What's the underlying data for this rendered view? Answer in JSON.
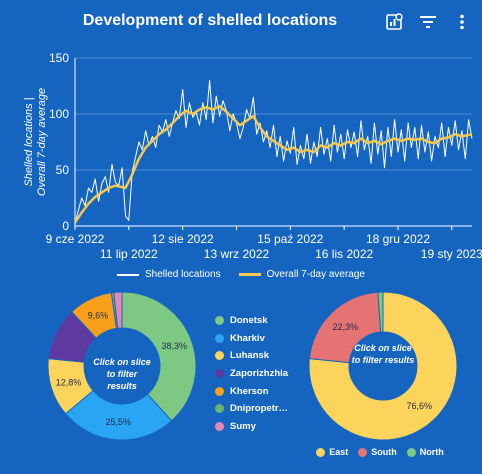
{
  "header": {
    "title": "Development of shelled locations",
    "icons": [
      "chart-settings-icon",
      "filter-icon",
      "more-vert-icon"
    ]
  },
  "colors": {
    "background": "#1565c0",
    "line": "#ffffff",
    "average": "#f6c84c",
    "Donetsk": "#7dc883",
    "Kharkiv": "#2aa4f4",
    "Luhansk": "#fcd45c",
    "Zaporizhzhia": "#5e3aa0",
    "Kherson": "#f9a01b",
    "Dnipropetrovsk": "#6ab46e",
    "Sumy": "#e388b4",
    "East": "#fcd45c",
    "South": "#e57373",
    "North": "#7dc883"
  },
  "chart_data": [
    {
      "type": "line",
      "title": "",
      "ylabel": "Shelled locations | Overall 7-day average",
      "xlabel": "",
      "x_range": [
        "2022-06-09",
        "2023-01-31"
      ],
      "ylim": [
        0,
        150
      ],
      "y_ticks": [
        0,
        50,
        100,
        150
      ],
      "x_ticks": [
        {
          "date": "2022-06-09",
          "label": "9 cze 2022",
          "row": 1
        },
        {
          "date": "2022-07-11",
          "label": "11 lip 2022",
          "row": 2
        },
        {
          "date": "2022-08-12",
          "label": "12 sie 2022",
          "row": 1
        },
        {
          "date": "2022-09-13",
          "label": "13 wrz 2022",
          "row": 2
        },
        {
          "date": "2022-10-15",
          "label": "15 paź 2022",
          "row": 1
        },
        {
          "date": "2022-11-16",
          "label": "16 lis 2022",
          "row": 2
        },
        {
          "date": "2022-12-18",
          "label": "18 gru 2022",
          "row": 1
        },
        {
          "date": "2023-01-19",
          "label": "19 sty 2023",
          "row": 2
        }
      ],
      "grid": true,
      "legend_position": "bottom",
      "series": [
        {
          "name": "Shelled locations",
          "points": [
            [
              "2022-06-09",
              2
            ],
            [
              "2022-06-11",
              14
            ],
            [
              "2022-06-13",
              25
            ],
            [
              "2022-06-15",
              18
            ],
            [
              "2022-06-17",
              34
            ],
            [
              "2022-06-19",
              30
            ],
            [
              "2022-06-21",
              42
            ],
            [
              "2022-06-23",
              22
            ],
            [
              "2022-06-25",
              38
            ],
            [
              "2022-06-27",
              44
            ],
            [
              "2022-06-29",
              30
            ],
            [
              "2022-07-01",
              55
            ],
            [
              "2022-07-03",
              39
            ],
            [
              "2022-07-05",
              36
            ],
            [
              "2022-07-07",
              52
            ],
            [
              "2022-07-09",
              9
            ],
            [
              "2022-07-11",
              5
            ],
            [
              "2022-07-13",
              48
            ],
            [
              "2022-07-15",
              62
            ],
            [
              "2022-07-17",
              75
            ],
            [
              "2022-07-19",
              68
            ],
            [
              "2022-07-21",
              85
            ],
            [
              "2022-07-23",
              72
            ],
            [
              "2022-07-25",
              80
            ],
            [
              "2022-07-27",
              70
            ],
            [
              "2022-07-29",
              90
            ],
            [
              "2022-07-31",
              84
            ],
            [
              "2022-08-02",
              95
            ],
            [
              "2022-08-04",
              80
            ],
            [
              "2022-08-06",
              92
            ],
            [
              "2022-08-08",
              103
            ],
            [
              "2022-08-10",
              96
            ],
            [
              "2022-08-12",
              122
            ],
            [
              "2022-08-14",
              88
            ],
            [
              "2022-08-16",
              110
            ],
            [
              "2022-08-18",
              97
            ],
            [
              "2022-08-20",
              102
            ],
            [
              "2022-08-22",
              90
            ],
            [
              "2022-08-24",
              110
            ],
            [
              "2022-08-26",
              95
            ],
            [
              "2022-08-28",
              130
            ],
            [
              "2022-08-30",
              92
            ],
            [
              "2022-09-01",
              116
            ],
            [
              "2022-09-03",
              98
            ],
            [
              "2022-09-05",
              112
            ],
            [
              "2022-09-07",
              103
            ],
            [
              "2022-09-09",
              85
            ],
            [
              "2022-09-11",
              100
            ],
            [
              "2022-09-13",
              92
            ],
            [
              "2022-09-15",
              78
            ],
            [
              "2022-09-17",
              88
            ],
            [
              "2022-09-19",
              104
            ],
            [
              "2022-09-21",
              96
            ],
            [
              "2022-09-23",
              115
            ],
            [
              "2022-09-25",
              82
            ],
            [
              "2022-09-27",
              92
            ],
            [
              "2022-09-29",
              75
            ],
            [
              "2022-10-01",
              85
            ],
            [
              "2022-10-03",
              70
            ],
            [
              "2022-10-05",
              90
            ],
            [
              "2022-10-07",
              62
            ],
            [
              "2022-10-09",
              80
            ],
            [
              "2022-10-11",
              58
            ],
            [
              "2022-10-13",
              76
            ],
            [
              "2022-10-15",
              65
            ],
            [
              "2022-10-17",
              88
            ],
            [
              "2022-10-19",
              55
            ],
            [
              "2022-10-21",
              72
            ],
            [
              "2022-10-23",
              60
            ],
            [
              "2022-10-25",
              82
            ],
            [
              "2022-10-27",
              56
            ],
            [
              "2022-10-29",
              75
            ],
            [
              "2022-10-31",
              62
            ],
            [
              "2022-11-02",
              88
            ],
            [
              "2022-11-04",
              64
            ],
            [
              "2022-11-06",
              78
            ],
            [
              "2022-11-08",
              58
            ],
            [
              "2022-11-10",
              90
            ],
            [
              "2022-11-12",
              66
            ],
            [
              "2022-11-14",
              82
            ],
            [
              "2022-11-16",
              60
            ],
            [
              "2022-11-18",
              86
            ],
            [
              "2022-11-20",
              70
            ],
            [
              "2022-11-22",
              84
            ],
            [
              "2022-11-24",
              62
            ],
            [
              "2022-11-26",
              94
            ],
            [
              "2022-11-28",
              68
            ],
            [
              "2022-11-30",
              80
            ],
            [
              "2022-12-02",
              56
            ],
            [
              "2022-12-04",
              92
            ],
            [
              "2022-12-06",
              64
            ],
            [
              "2022-12-08",
              85
            ],
            [
              "2022-12-10",
              52
            ],
            [
              "2022-12-12",
              88
            ],
            [
              "2022-12-14",
              62
            ],
            [
              "2022-12-16",
              95
            ],
            [
              "2022-12-18",
              66
            ],
            [
              "2022-12-20",
              86
            ],
            [
              "2022-12-22",
              58
            ],
            [
              "2022-12-24",
              92
            ],
            [
              "2022-12-26",
              70
            ],
            [
              "2022-12-28",
              88
            ],
            [
              "2022-12-30",
              60
            ],
            [
              "2023-01-01",
              90
            ],
            [
              "2023-01-03",
              66
            ],
            [
              "2023-01-05",
              84
            ],
            [
              "2023-01-07",
              58
            ],
            [
              "2023-01-09",
              80
            ],
            [
              "2023-01-11",
              70
            ],
            [
              "2023-01-13",
              92
            ],
            [
              "2023-01-15",
              62
            ],
            [
              "2023-01-17",
              88
            ],
            [
              "2023-01-19",
              72
            ],
            [
              "2023-01-21",
              94
            ],
            [
              "2023-01-23",
              68
            ],
            [
              "2023-01-25",
              85
            ],
            [
              "2023-01-27",
              60
            ],
            [
              "2023-01-29",
              95
            ],
            [
              "2023-01-31",
              78
            ]
          ]
        },
        {
          "name": "Overall 7-day average",
          "points": [
            [
              "2022-06-09",
              3
            ],
            [
              "2022-06-13",
              12
            ],
            [
              "2022-06-17",
              20
            ],
            [
              "2022-06-21",
              26
            ],
            [
              "2022-06-25",
              30
            ],
            [
              "2022-06-29",
              34
            ],
            [
              "2022-07-03",
              36
            ],
            [
              "2022-07-09",
              34
            ],
            [
              "2022-07-13",
              46
            ],
            [
              "2022-07-17",
              60
            ],
            [
              "2022-07-21",
              70
            ],
            [
              "2022-07-25",
              76
            ],
            [
              "2022-07-29",
              82
            ],
            [
              "2022-08-02",
              86
            ],
            [
              "2022-08-06",
              92
            ],
            [
              "2022-08-10",
              98
            ],
            [
              "2022-08-14",
              103
            ],
            [
              "2022-08-18",
              100
            ],
            [
              "2022-08-22",
              104
            ],
            [
              "2022-08-26",
              106
            ],
            [
              "2022-08-30",
              104
            ],
            [
              "2022-09-03",
              107
            ],
            [
              "2022-09-07",
              102
            ],
            [
              "2022-09-11",
              96
            ],
            [
              "2022-09-15",
              90
            ],
            [
              "2022-09-19",
              94
            ],
            [
              "2022-09-23",
              98
            ],
            [
              "2022-09-27",
              88
            ],
            [
              "2022-10-01",
              80
            ],
            [
              "2022-10-05",
              76
            ],
            [
              "2022-10-09",
              72
            ],
            [
              "2022-10-13",
              68
            ],
            [
              "2022-10-17",
              70
            ],
            [
              "2022-10-21",
              66
            ],
            [
              "2022-10-25",
              68
            ],
            [
              "2022-10-29",
              66
            ],
            [
              "2022-11-02",
              72
            ],
            [
              "2022-11-06",
              70
            ],
            [
              "2022-11-10",
              74
            ],
            [
              "2022-11-14",
              72
            ],
            [
              "2022-11-18",
              75
            ],
            [
              "2022-11-22",
              74
            ],
            [
              "2022-11-26",
              78
            ],
            [
              "2022-11-30",
              74
            ],
            [
              "2022-12-04",
              76
            ],
            [
              "2022-12-08",
              73
            ],
            [
              "2022-12-12",
              76
            ],
            [
              "2022-12-16",
              78
            ],
            [
              "2022-12-20",
              76
            ],
            [
              "2022-12-24",
              78
            ],
            [
              "2022-12-28",
              77
            ],
            [
              "2023-01-01",
              78
            ],
            [
              "2023-01-05",
              75
            ],
            [
              "2023-01-09",
              74
            ],
            [
              "2023-01-13",
              78
            ],
            [
              "2023-01-17",
              79
            ],
            [
              "2023-01-21",
              82
            ],
            [
              "2023-01-25",
              80
            ],
            [
              "2023-01-31",
              82
            ]
          ]
        }
      ]
    },
    {
      "type": "pie",
      "variant": "donut",
      "center_text": "Click on slice to filter results",
      "legend_position": "right",
      "slices": [
        {
          "name": "Donetsk",
          "value": 38.3,
          "label": "38,3%"
        },
        {
          "name": "Kharkiv",
          "value": 25.5,
          "label": "25,5%"
        },
        {
          "name": "Luhansk",
          "value": 12.8,
          "label": "12,8%"
        },
        {
          "name": "Zaporizhzhia",
          "value": 11.5,
          "label": ""
        },
        {
          "name": "Kherson",
          "value": 9.6,
          "label": "9,6%"
        },
        {
          "name": "Dnipropetrovsk",
          "value": 0.5,
          "label": ""
        },
        {
          "name": "Sumy",
          "value": 1.8,
          "label": ""
        }
      ],
      "legend": [
        "Donetsk",
        "Kharkiv",
        "Luhansk",
        "Zaporizhzhia",
        "Kherson",
        "Dnipropetr…",
        "Sumy"
      ]
    },
    {
      "type": "pie",
      "variant": "donut",
      "center_text": "Click on slice to filter results",
      "legend_position": "bottom",
      "slices": [
        {
          "name": "East",
          "value": 76.6,
          "label": "76,6%"
        },
        {
          "name": "South",
          "value": 22.3,
          "label": "22,3%"
        },
        {
          "name": "North",
          "value": 1.1,
          "label": ""
        }
      ],
      "legend": [
        "East",
        "South",
        "North"
      ]
    }
  ]
}
